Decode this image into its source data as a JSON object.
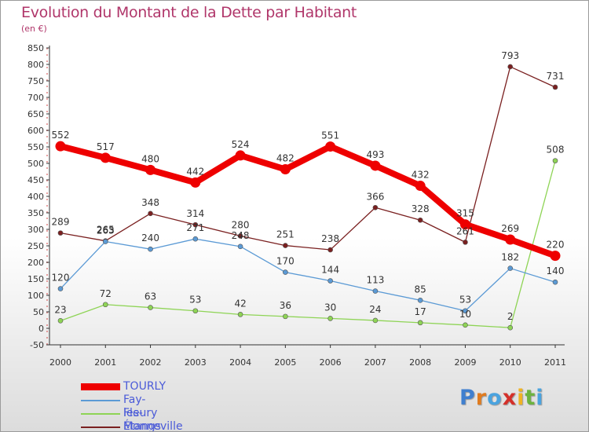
{
  "chart_data": {
    "type": "line",
    "title": "Evolution du Montant de la Dette par Habitant",
    "subtitle": "(en €)",
    "xlabel": "",
    "ylabel": "",
    "x": [
      "2000",
      "2001",
      "2002",
      "2003",
      "2004",
      "2005",
      "2006",
      "2007",
      "2008",
      "2009",
      "2010",
      "2011"
    ],
    "ylim": [
      -50,
      850
    ],
    "yticks": [
      -50,
      0,
      50,
      100,
      150,
      200,
      250,
      300,
      350,
      400,
      450,
      500,
      550,
      600,
      650,
      700,
      750,
      800,
      850
    ],
    "grid": false,
    "legend_position": "bottom-left",
    "series": [
      {
        "name": "Monneville",
        "color": "#7a2020",
        "values": [
          289,
          265,
          348,
          314,
          280,
          251,
          238,
          366,
          328,
          261,
          793,
          731
        ],
        "labels": [
          "289",
          "265",
          "348",
          "314",
          "280",
          "251",
          "238",
          "366",
          "328",
          "261",
          "793",
          "731"
        ]
      },
      {
        "name": "Fleury",
        "color": "#8ed455",
        "values": [
          23,
          72,
          63,
          53,
          42,
          36,
          30,
          24,
          17,
          10,
          2,
          508
        ],
        "labels": [
          "23",
          "72",
          "63",
          "53",
          "42",
          "36",
          "30",
          "24",
          "17",
          "10",
          "2",
          "508"
        ]
      },
      {
        "name": "Fay-les-Étangs",
        "color": "#5b9ad5",
        "values": [
          120,
          263,
          240,
          271,
          248,
          170,
          144,
          113,
          85,
          53,
          182,
          140
        ],
        "labels": [
          "120",
          "263",
          "240",
          "271",
          "248",
          "170",
          "144",
          "113",
          "85",
          "53",
          "182",
          "140"
        ]
      },
      {
        "name": "TOURLY",
        "color": "#ee0000",
        "values": [
          552,
          517,
          480,
          442,
          524,
          482,
          551,
          493,
          432,
          315,
          269,
          220
        ],
        "labels": [
          "552",
          "517",
          "480",
          "442",
          "524",
          "482",
          "551",
          "493",
          "432",
          "315",
          "269",
          "220"
        ]
      }
    ]
  },
  "legend": [
    {
      "name": "TOURLY",
      "color": "#ee0000"
    },
    {
      "name": "Fay-les-Étangs",
      "color": "#5b9ad5"
    },
    {
      "name": "Fleury",
      "color": "#8ed455"
    },
    {
      "name": "Monneville",
      "color": "#7a2020"
    }
  ],
  "brand": {
    "letters": [
      "P",
      "r",
      "o",
      "x",
      "i",
      "t",
      "i"
    ],
    "colors": [
      "#3f7fcf",
      "#e07b1f",
      "#4aa3df",
      "#d4302a",
      "#f0b323",
      "#6cb33f",
      "#4aa3df"
    ]
  }
}
